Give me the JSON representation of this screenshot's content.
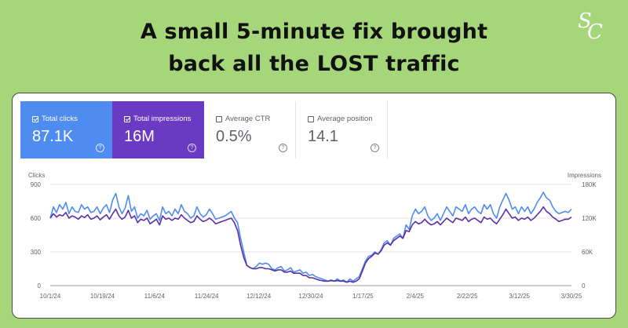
{
  "headline": {
    "line1": "A small 5-minute fix brought",
    "line2": "back all the LOST traffic"
  },
  "logo": {
    "letter1": "S",
    "letter2": "C"
  },
  "metrics": [
    {
      "label": "Total clicks",
      "value": "87.1K",
      "checked": true,
      "color": "#4f8cf0",
      "icon": "help-icon"
    },
    {
      "label": "Total impressions",
      "value": "16M",
      "checked": true,
      "color": "#6a3bc2",
      "icon": "help-icon"
    },
    {
      "label": "Average CTR",
      "value": "0.5%",
      "checked": false,
      "icon": "help-icon"
    },
    {
      "label": "Average position",
      "value": "14.1",
      "checked": false,
      "icon": "help-icon"
    }
  ],
  "chart_data": {
    "type": "line",
    "left_axis_title": "Clicks",
    "right_axis_title": "Impressions",
    "left_ticks": [
      "900",
      "600",
      "300",
      "0"
    ],
    "right_ticks": [
      "180K",
      "120K",
      "60K",
      "0"
    ],
    "ylim_left": [
      0,
      900
    ],
    "ylim_right": [
      0,
      180000
    ],
    "x_labels": [
      "10/1/24",
      "10/19/24",
      "11/6/24",
      "11/24/24",
      "12/12/24",
      "12/30/24",
      "1/17/25",
      "2/4/25",
      "2/22/25",
      "3/12/25",
      "3/30/25"
    ],
    "grid": true,
    "series": [
      {
        "name": "Clicks",
        "axis": "left",
        "color": "#4f8cf0",
        "values": [
          600,
          700,
          650,
          720,
          680,
          740,
          640,
          700,
          660,
          650,
          720,
          680,
          700,
          650,
          660,
          700,
          640,
          690,
          720,
          650,
          760,
          820,
          700,
          640,
          690,
          800,
          660,
          700,
          600,
          640,
          620,
          670,
          590,
          620,
          640,
          580,
          700,
          640,
          660,
          620,
          680,
          640,
          720,
          660,
          640,
          600,
          620,
          700,
          640,
          610,
          630,
          680,
          640,
          590,
          600,
          610,
          620,
          640,
          660,
          600,
          560,
          420,
          300,
          180,
          160,
          150,
          170,
          200,
          190,
          200,
          190,
          150,
          140,
          160,
          170,
          130,
          140,
          160,
          120,
          130,
          140,
          110,
          120,
          90,
          100,
          80,
          70,
          60,
          50,
          40,
          50,
          40,
          60,
          40,
          50,
          30,
          60,
          40,
          60,
          80,
          150,
          220,
          260,
          270,
          300,
          280,
          320,
          380,
          400,
          360,
          420,
          440,
          460,
          420,
          540,
          500,
          620,
          680,
          640,
          660,
          700,
          620,
          580,
          600,
          640,
          580,
          640,
          700,
          660,
          620,
          700,
          680,
          660,
          720,
          640,
          680,
          700,
          660,
          640,
          720,
          680,
          720,
          640,
          600,
          700,
          760,
          820,
          760,
          680,
          700,
          640,
          700,
          660,
          700,
          640,
          680,
          740,
          780,
          830,
          780,
          760,
          700,
          660,
          640,
          650,
          660,
          650,
          680
        ]
      },
      {
        "name": "Impressions",
        "axis": "right",
        "color": "#5b2fa8",
        "values": [
          120000,
          128000,
          122000,
          126000,
          124000,
          130000,
          120000,
          124000,
          122000,
          118000,
          124000,
          121000,
          126000,
          118000,
          120000,
          124000,
          117000,
          122000,
          126000,
          118000,
          128000,
          136000,
          124000,
          118000,
          122000,
          134000,
          120000,
          124000,
          112000,
          118000,
          116000,
          120000,
          110000,
          114000,
          118000,
          108000,
          124000,
          118000,
          120000,
          116000,
          120000,
          118000,
          126000,
          120000,
          116000,
          112000,
          114000,
          124000,
          118000,
          114000,
          116000,
          120000,
          116000,
          110000,
          112000,
          114000,
          116000,
          118000,
          120000,
          112000,
          98000,
          72000,
          50000,
          36000,
          32000,
          30000,
          30000,
          32000,
          32000,
          30000,
          30000,
          28000,
          26000,
          28000,
          28000,
          24000,
          24000,
          26000,
          22000,
          22000,
          22000,
          18000,
          18000,
          14000,
          14000,
          12000,
          10000,
          9000,
          8000,
          8000,
          9000,
          8000,
          9000,
          8000,
          8000,
          6000,
          8000,
          6000,
          8000,
          12000,
          26000,
          40000,
          48000,
          52000,
          58000,
          56000,
          62000,
          72000,
          76000,
          72000,
          80000,
          84000,
          88000,
          84000,
          98000,
          96000,
          108000,
          114000,
          110000,
          112000,
          118000,
          112000,
          108000,
          110000,
          114000,
          108000,
          114000,
          120000,
          116000,
          112000,
          120000,
          118000,
          116000,
          122000,
          114000,
          118000,
          120000,
          116000,
          112000,
          122000,
          118000,
          120000,
          114000,
          110000,
          118000,
          126000,
          136000,
          128000,
          120000,
          122000,
          116000,
          120000,
          118000,
          122000,
          116000,
          120000,
          126000,
          132000,
          140000,
          132000,
          128000,
          122000,
          118000,
          114000,
          116000,
          118000,
          118000,
          122000
        ]
      }
    ]
  }
}
